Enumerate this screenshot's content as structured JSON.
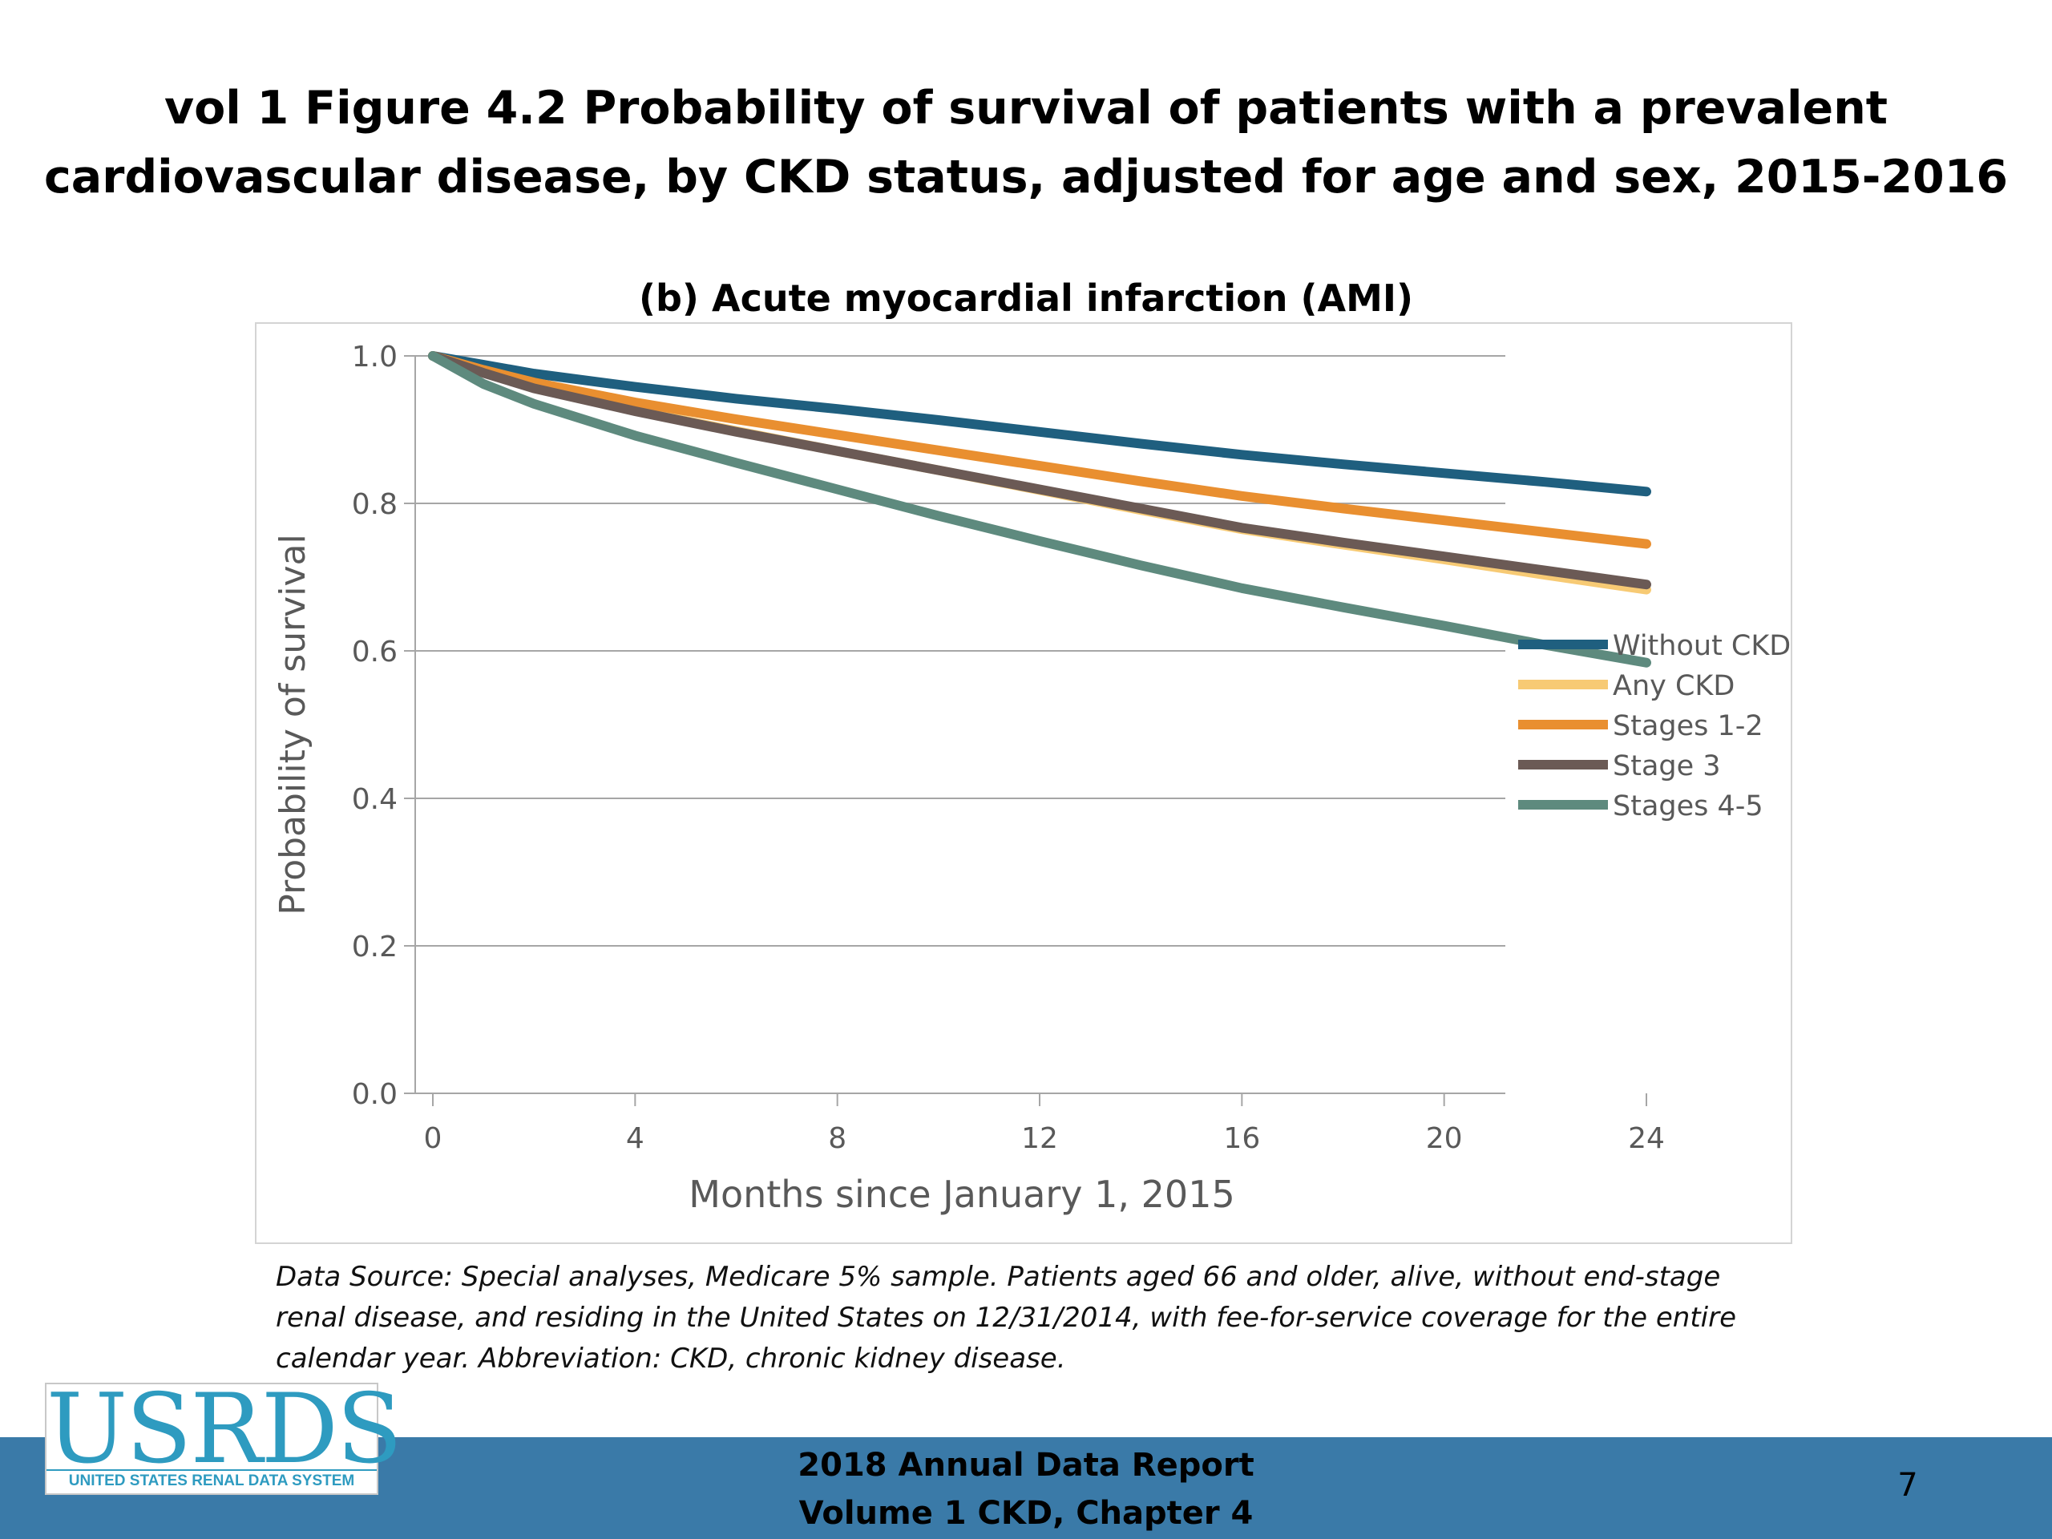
{
  "slide": {
    "title_line1": "vol 1 Figure 4.2 Probability of survival of patients with a prevalent",
    "title_line2": "cardiovascular disease, by CKD status, adjusted for age and sex, 2015-2016",
    "footnote_line1": "Data Source: Special analyses, Medicare 5% sample. Patients aged 66 and older, alive, without end-stage",
    "footnote_line2": "renal disease, and residing in the United States on 12/31/2014, with fee-for-service coverage for the entire",
    "footnote_line3": "calendar year. Abbreviation: CKD, chronic kidney disease.",
    "footer_line1": "2018 Annual Data Report",
    "footer_line2": "Volume 1 CKD, Chapter 4",
    "page_number": "7",
    "logo_text": "USRDS",
    "logo_subtext": "UNITED STATES RENAL DATA SYSTEM",
    "footer_color": "#3a7aa8"
  },
  "chart_data": {
    "type": "line",
    "title": "(b) Acute myocardial infarction (AMI)",
    "xlabel": "Months since January 1, 2015",
    "ylabel": "Probability of survival",
    "xlim": [
      0,
      24
    ],
    "ylim": [
      0,
      1
    ],
    "xticks": [
      0,
      4,
      8,
      12,
      16,
      20,
      24
    ],
    "yticks": [
      0.0,
      0.2,
      0.4,
      0.6,
      0.8,
      1.0
    ],
    "ytick_labels": [
      "0.0",
      "0.2",
      "0.4",
      "0.6",
      "0.8",
      "1.0"
    ],
    "grid": "horizontal",
    "legend_position": "right",
    "x": [
      0,
      1,
      2,
      4,
      6,
      8,
      10,
      12,
      14,
      16,
      18,
      20,
      22,
      24
    ],
    "series": [
      {
        "name": "Without CKD",
        "color": "#1f5f7f",
        "values": [
          1.0,
          0.988,
          0.976,
          0.958,
          0.942,
          0.928,
          0.913,
          0.897,
          0.881,
          0.866,
          0.853,
          0.841,
          0.829,
          0.816
        ]
      },
      {
        "name": "Any CKD",
        "color": "#f7ca74",
        "values": [
          1.0,
          0.978,
          0.958,
          0.926,
          0.898,
          0.871,
          0.845,
          0.818,
          0.791,
          0.765,
          0.744,
          0.724,
          0.703,
          0.683
        ]
      },
      {
        "name": "Stages 1-2",
        "color": "#e98f30",
        "values": [
          1.0,
          0.981,
          0.964,
          0.937,
          0.914,
          0.893,
          0.872,
          0.851,
          0.83,
          0.81,
          0.793,
          0.777,
          0.761,
          0.745
        ]
      },
      {
        "name": "Stage 3",
        "color": "#6b5a55",
        "values": [
          1.0,
          0.977,
          0.956,
          0.925,
          0.897,
          0.871,
          0.845,
          0.819,
          0.793,
          0.767,
          0.747,
          0.728,
          0.709,
          0.69
        ]
      },
      {
        "name": "Stages 4-5",
        "color": "#5e8a7e",
        "values": [
          1.0,
          0.962,
          0.935,
          0.892,
          0.855,
          0.819,
          0.783,
          0.749,
          0.716,
          0.685,
          0.659,
          0.634,
          0.608,
          0.584
        ]
      }
    ]
  }
}
